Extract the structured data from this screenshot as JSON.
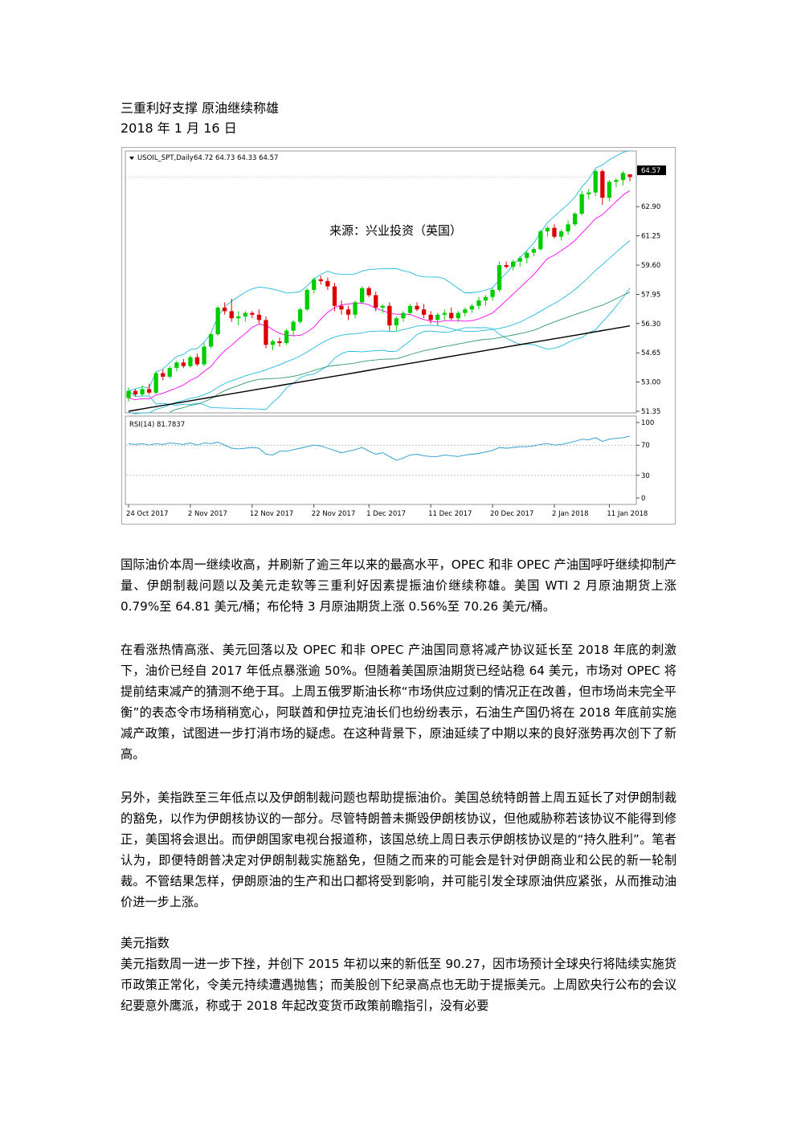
{
  "article": {
    "title": "三重利好支撑 原油继续称雄",
    "date": "2018 年 1 月 16 日",
    "paragraphs": [
      "国际油价本周一继续收高，并刷新了逾三年以来的最高水平，OPEC 和非 OPEC 产油国呼吁继续抑制产量、伊朗制裁问题以及美元走软等三重利好因素提振油价继续称雄。美国 WTI 2 月原油期货上涨 0.79%至 64.81 美元/桶；布伦特 3 月原油期货上涨 0.56%至 70.26 美元/桶。",
      "在看涨热情高涨、美元回落以及 OPEC 和非 OPEC 产油国同意将减产协议延长至 2018 年底的刺激下，油价已经自 2017 年低点暴涨逾 50%。但随着美国原油期货已经站稳 64 美元，市场对 OPEC 将提前结束减产的猜测不绝于耳。上周五俄罗斯油长称“市场供应过剩的情况正在改善，但市场尚未完全平衡”的表态令市场稍稍宽心，阿联酋和伊拉克油长们也纷纷表示，石油生产国仍将在 2018 年底前实施减产政策，试图进一步打消市场的疑虑。在这种背景下，原油延续了中期以来的良好涨势再次创下了新高。",
      "另外，美指跌至三年低点以及伊朗制裁问题也帮助提振油价。美国总统特朗普上周五延长了对伊朗制裁的豁免，以作为伊朗核协议的一部分。尽管特朗普未撕毁伊朗核协议，但他威胁称若该协议不能得到修正，美国将会退出。而伊朗国家电视台报道称，该国总统上周日表示伊朗核协议是的“持久胜利”。笔者认为，即便特朗普决定对伊朗制裁实施豁免，但随之而来的可能会是针对伊朗商业和公民的新一轮制裁。不管结果怎样，伊朗原油的生产和出口都将受到影响，并可能引发全球原油供应紧张，从而推动油价进一步上涨。"
    ],
    "section_heading": "美元指数",
    "section_paragraph": "美元指数周一进一步下挫，并创下 2015 年初以来的新低至 90.27，因市场预计全球央行将陆续实施货币政策正常化，令美元持续遭遇抛售；而美股创下纪录高点也无助于提振美元。上周欧央行公布的会议纪要意外鹰派，称或于 2018 年起改变货币政策前瞻指引，没有必要"
  },
  "chart_data": {
    "type": "candlestick",
    "header": "USOIL_SPT,Daily",
    "ohlc_header": "64.72 64.73 64.33 64.57",
    "watermark": "来源：兴业投资（英国）",
    "last_price": "64.57",
    "price_ticks": [
      "62.90",
      "61.25",
      "59.60",
      "57.95",
      "56.30",
      "54.65",
      "53.00",
      "51.35"
    ],
    "price_range": [
      51.35,
      64.95
    ],
    "rsi_label": "RSI(14) 81.7837",
    "rsi_ticks": [
      "100",
      "70",
      "30",
      "0"
    ],
    "rsi_range": [
      0,
      100
    ],
    "date_ticks": [
      "24 Oct 2017",
      "2 Nov 2017",
      "12 Nov 2017",
      "22 Nov 2017",
      "1 Dec 2017",
      "11 Dec 2017",
      "20 Dec 2017",
      "2 Jan 2018",
      "11 Jan 2018"
    ],
    "colors": {
      "up": "#00cc00",
      "down": "#dd0000",
      "bollinger": "#22bbdd",
      "ma_short": "#ff00ff",
      "ma_mid": "#339966",
      "ma_long": "#000000",
      "rsi": "#2299cc",
      "last_price_bg": "#000000"
    },
    "candles": [
      [
        52.1,
        52.7,
        51.9,
        52.5
      ],
      [
        52.5,
        52.6,
        52.2,
        52.3
      ],
      [
        52.3,
        52.8,
        52.2,
        52.6
      ],
      [
        52.6,
        52.9,
        52.3,
        52.4
      ],
      [
        52.4,
        53.6,
        52.3,
        53.5
      ],
      [
        53.5,
        53.7,
        53.1,
        53.3
      ],
      [
        53.3,
        53.9,
        53.2,
        53.8
      ],
      [
        53.8,
        54.2,
        53.6,
        54.1
      ],
      [
        54.1,
        54.3,
        53.8,
        53.9
      ],
      [
        53.9,
        54.5,
        53.8,
        54.4
      ],
      [
        54.4,
        54.6,
        53.9,
        54.0
      ],
      [
        54.0,
        55.2,
        53.9,
        55.0
      ],
      [
        55.0,
        55.8,
        54.9,
        55.7
      ],
      [
        55.7,
        57.3,
        55.6,
        57.2
      ],
      [
        57.2,
        57.5,
        56.8,
        57.0
      ],
      [
        57.0,
        57.7,
        56.4,
        56.6
      ],
      [
        56.6,
        57.0,
        56.2,
        56.7
      ],
      [
        56.7,
        57.0,
        56.4,
        56.9
      ],
      [
        56.9,
        57.0,
        56.6,
        56.8
      ],
      [
        56.8,
        57.1,
        56.3,
        56.5
      ],
      [
        56.5,
        56.7,
        54.9,
        55.1
      ],
      [
        55.1,
        55.4,
        54.8,
        55.3
      ],
      [
        55.3,
        55.5,
        55.0,
        55.2
      ],
      [
        55.2,
        56.0,
        55.1,
        55.9
      ],
      [
        55.9,
        56.5,
        55.6,
        56.4
      ],
      [
        56.4,
        57.2,
        56.3,
        57.1
      ],
      [
        57.1,
        58.3,
        57.0,
        58.2
      ],
      [
        58.2,
        58.9,
        58.0,
        58.8
      ],
      [
        58.8,
        59.0,
        58.5,
        58.7
      ],
      [
        58.7,
        58.9,
        58.2,
        58.4
      ],
      [
        58.4,
        58.6,
        57.0,
        57.3
      ],
      [
        57.3,
        57.6,
        56.8,
        57.1
      ],
      [
        57.1,
        57.3,
        56.5,
        56.8
      ],
      [
        56.8,
        57.6,
        56.6,
        57.5
      ],
      [
        57.5,
        58.4,
        57.4,
        58.3
      ],
      [
        58.3,
        58.4,
        57.8,
        57.9
      ],
      [
        57.9,
        58.1,
        57.0,
        57.2
      ],
      [
        57.2,
        57.4,
        56.9,
        57.3
      ],
      [
        57.3,
        57.5,
        55.9,
        56.2
      ],
      [
        56.2,
        56.7,
        55.9,
        56.6
      ],
      [
        56.6,
        57.0,
        56.4,
        56.9
      ],
      [
        56.9,
        57.4,
        56.8,
        57.3
      ],
      [
        57.3,
        57.5,
        57.0,
        57.1
      ],
      [
        57.1,
        57.4,
        56.6,
        56.8
      ],
      [
        56.8,
        57.0,
        56.3,
        56.5
      ],
      [
        56.5,
        56.9,
        56.2,
        56.8
      ],
      [
        56.8,
        57.1,
        56.5,
        56.9
      ],
      [
        56.9,
        57.2,
        56.5,
        56.6
      ],
      [
        56.6,
        57.0,
        56.4,
        56.9
      ],
      [
        56.9,
        57.2,
        56.7,
        57.1
      ],
      [
        57.1,
        57.4,
        56.9,
        57.3
      ],
      [
        57.3,
        57.8,
        57.1,
        57.6
      ],
      [
        57.6,
        57.9,
        57.3,
        57.8
      ],
      [
        57.8,
        58.3,
        57.6,
        58.2
      ],
      [
        58.2,
        59.8,
        58.1,
        59.6
      ],
      [
        59.6,
        59.8,
        59.4,
        59.5
      ],
      [
        59.5,
        59.9,
        59.3,
        59.8
      ],
      [
        59.8,
        60.1,
        59.5,
        60.0
      ],
      [
        60.0,
        60.4,
        59.7,
        60.3
      ],
      [
        60.3,
        60.6,
        60.1,
        60.5
      ],
      [
        60.5,
        61.6,
        60.4,
        61.5
      ],
      [
        61.5,
        61.8,
        61.2,
        61.7
      ],
      [
        61.7,
        61.9,
        61.1,
        61.2
      ],
      [
        61.2,
        61.6,
        61.0,
        61.5
      ],
      [
        61.5,
        62.1,
        61.3,
        61.9
      ],
      [
        61.9,
        62.6,
        61.8,
        62.5
      ],
      [
        62.5,
        63.8,
        62.4,
        63.6
      ],
      [
        63.6,
        63.9,
        63.3,
        63.7
      ],
      [
        63.7,
        65.0,
        63.5,
        64.9
      ],
      [
        64.9,
        65.0,
        63.0,
        63.4
      ],
      [
        63.4,
        64.4,
        63.2,
        64.3
      ],
      [
        64.3,
        64.5,
        64.0,
        64.4
      ],
      [
        64.4,
        64.9,
        64.1,
        64.8
      ],
      [
        64.72,
        64.73,
        64.33,
        64.57
      ]
    ],
    "rsi_values": [
      72,
      71,
      72,
      70,
      72,
      71,
      73,
      72,
      71,
      73,
      70,
      73,
      72,
      74,
      70,
      66,
      65,
      66,
      67,
      66,
      58,
      57,
      62,
      62,
      64,
      66,
      68,
      70,
      69,
      66,
      63,
      60,
      62,
      64,
      67,
      62,
      58,
      60,
      55,
      50,
      53,
      57,
      58,
      56,
      55,
      55,
      57,
      56,
      55,
      57,
      58,
      59,
      61,
      63,
      67,
      66,
      67,
      68,
      68,
      69,
      71,
      72,
      70,
      71,
      73,
      75,
      78,
      77,
      80,
      75,
      78,
      79,
      80,
      81.78
    ]
  }
}
